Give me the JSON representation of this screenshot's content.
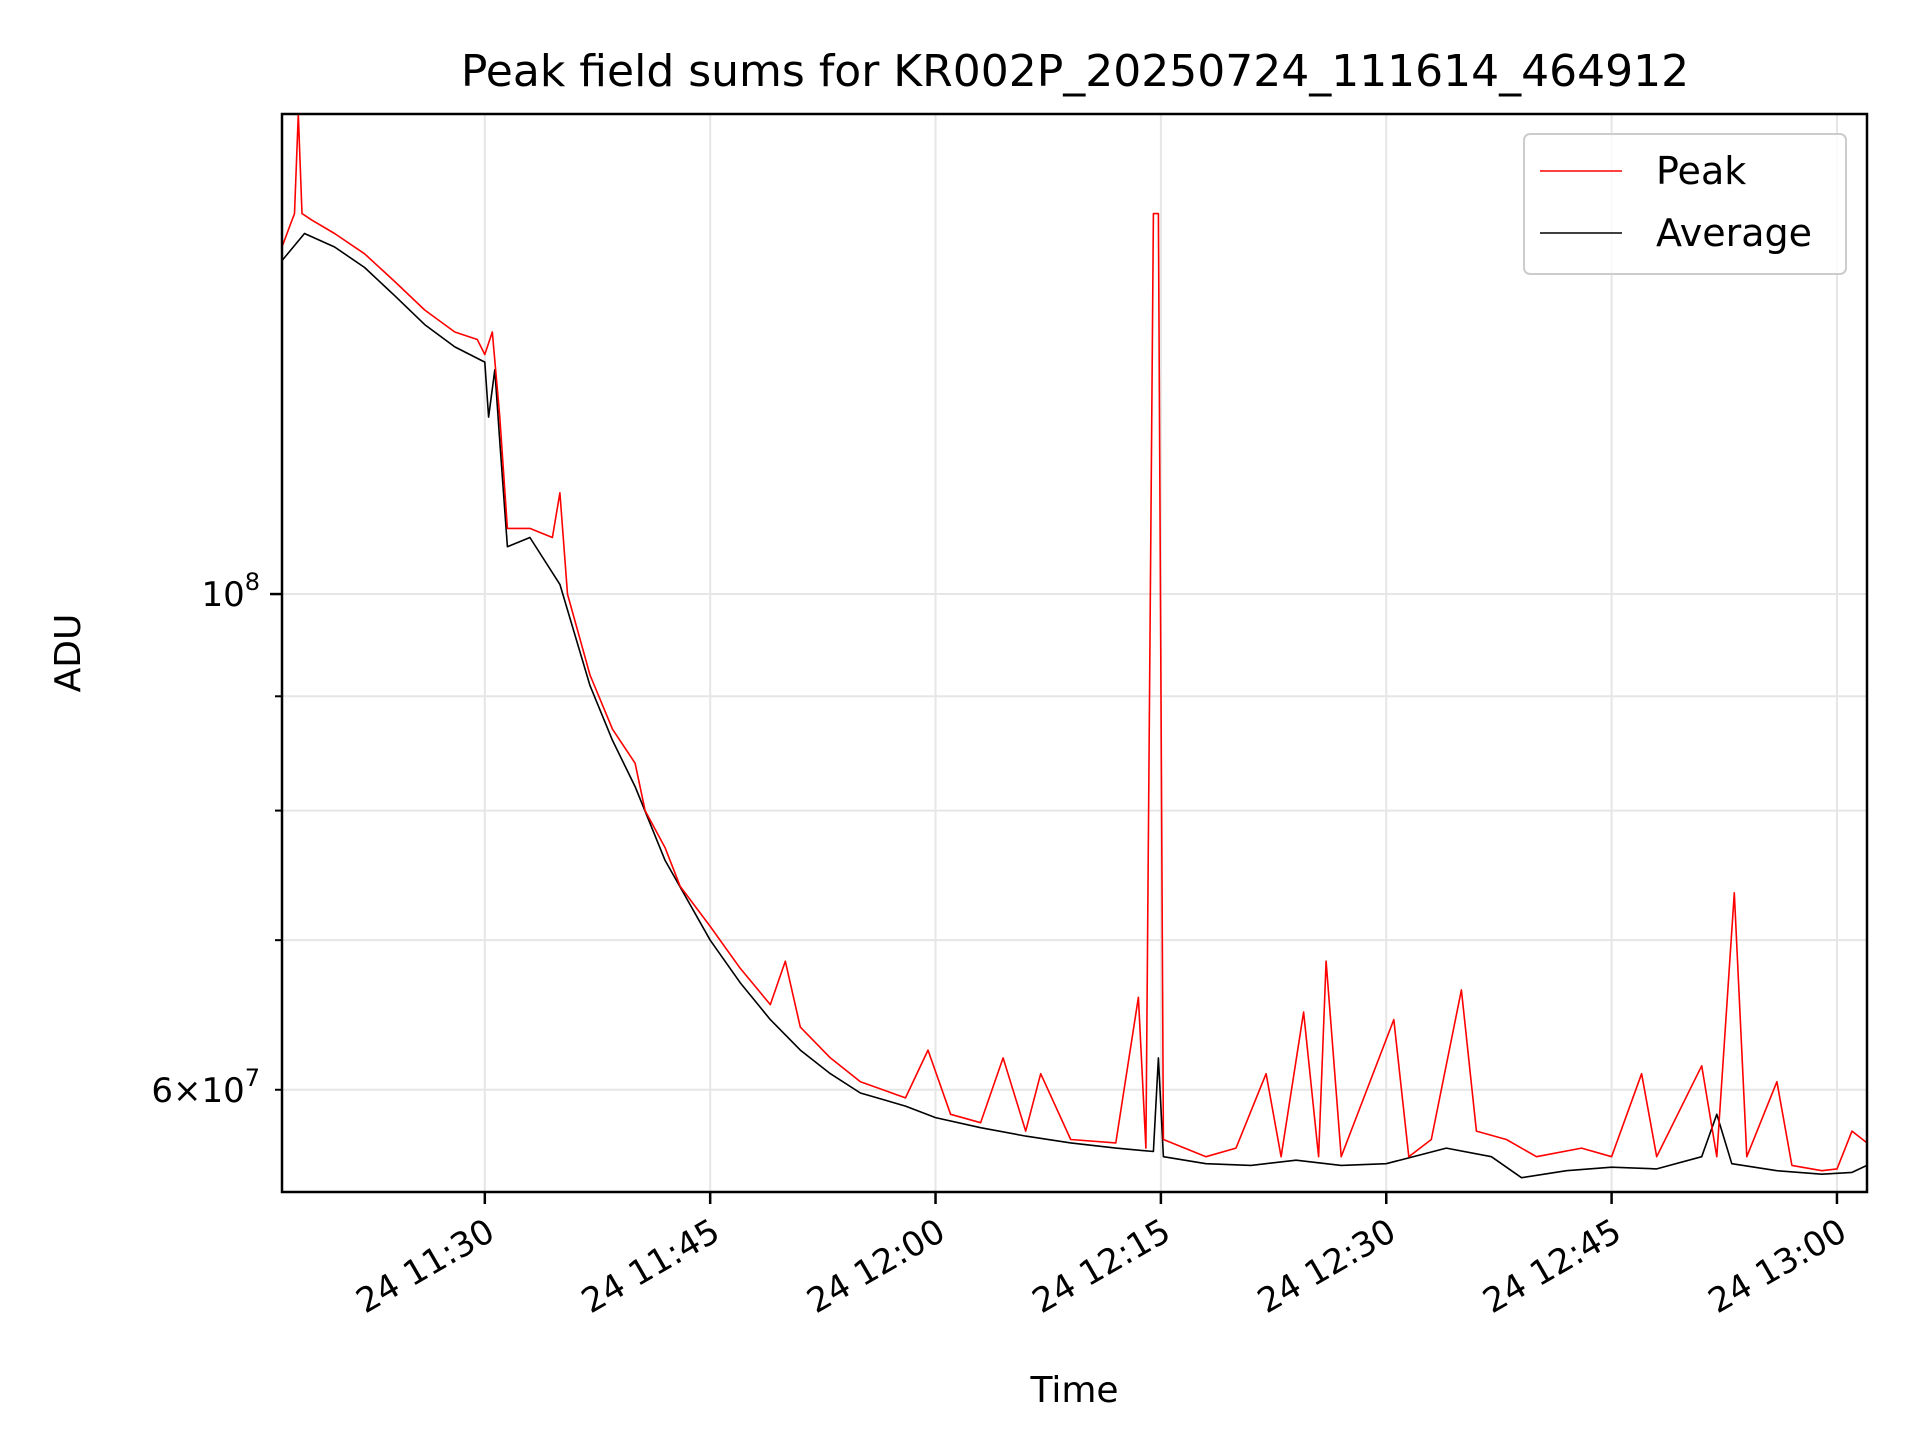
{
  "chart_data": {
    "type": "line",
    "title": "Peak field sums for KR002P_20250724_111614_464912",
    "xlabel": "Time",
    "ylabel": "ADU",
    "yscale": "log",
    "grid": true,
    "legend_position": "top-right",
    "xlim": [
      "2025-07-24 11:16:30",
      "2025-07-24 13:02:00"
    ],
    "ylim": [
      54000000,
      164000000
    ],
    "x_ticks": [
      {
        "t": "2025-07-24 11:30",
        "label": "24 11:30"
      },
      {
        "t": "2025-07-24 11:45",
        "label": "24 11:45"
      },
      {
        "t": "2025-07-24 12:00",
        "label": "24 12:00"
      },
      {
        "t": "2025-07-24 12:15",
        "label": "24 12:15"
      },
      {
        "t": "2025-07-24 12:30",
        "label": "24 12:30"
      },
      {
        "t": "2025-07-24 12:45",
        "label": "24 12:45"
      },
      {
        "t": "2025-07-24 13:00",
        "label": "24 13:00"
      }
    ],
    "y_ticks_major": [
      {
        "value": 100000000,
        "label_base": "10",
        "label_exp": "8"
      }
    ],
    "y_ticks_minor": [
      {
        "value": 60000000,
        "label_base": "6×10",
        "label_exp": "7"
      },
      {
        "value": 70000000
      },
      {
        "value": 80000000
      },
      {
        "value": 90000000
      }
    ],
    "series": [
      {
        "name": "Peak",
        "color": "#ff0000",
        "points": [
          [
            "2025-07-24 11:16:30",
            143000000
          ],
          [
            "2025-07-24 11:17:00",
            146000000
          ],
          [
            "2025-07-24 11:17:20",
            148000000
          ],
          [
            "2025-07-24 11:17:35",
            164000000
          ],
          [
            "2025-07-24 11:17:50",
            148000000
          ],
          [
            "2025-07-24 11:18:30",
            147000000
          ],
          [
            "2025-07-24 11:20:00",
            145000000
          ],
          [
            "2025-07-24 11:22:00",
            142000000
          ],
          [
            "2025-07-24 11:24:00",
            138000000
          ],
          [
            "2025-07-24 11:26:00",
            134000000
          ],
          [
            "2025-07-24 11:28:00",
            131000000
          ],
          [
            "2025-07-24 11:29:30",
            130000000
          ],
          [
            "2025-07-24 11:30:00",
            128000000
          ],
          [
            "2025-07-24 11:30:30",
            131000000
          ],
          [
            "2025-07-24 11:31:00",
            120000000
          ],
          [
            "2025-07-24 11:31:30",
            107000000
          ],
          [
            "2025-07-24 11:33:00",
            107000000
          ],
          [
            "2025-07-24 11:34:30",
            106000000
          ],
          [
            "2025-07-24 11:35:00",
            111000000
          ],
          [
            "2025-07-24 11:35:30",
            100000000
          ],
          [
            "2025-07-24 11:37:00",
            92000000
          ],
          [
            "2025-07-24 11:38:30",
            87000000
          ],
          [
            "2025-07-24 11:40:00",
            84000000
          ],
          [
            "2025-07-24 11:40:40",
            80000000
          ],
          [
            "2025-07-24 11:42:00",
            77000000
          ],
          [
            "2025-07-24 11:43:00",
            74000000
          ],
          [
            "2025-07-24 11:45:00",
            71000000
          ],
          [
            "2025-07-24 11:47:00",
            68000000
          ],
          [
            "2025-07-24 11:49:00",
            65500000
          ],
          [
            "2025-07-24 11:50:00",
            68500000
          ],
          [
            "2025-07-24 11:51:00",
            64000000
          ],
          [
            "2025-07-24 11:53:00",
            62000000
          ],
          [
            "2025-07-24 11:55:00",
            60500000
          ],
          [
            "2025-07-24 11:58:00",
            59500000
          ],
          [
            "2025-07-24 11:59:30",
            62500000
          ],
          [
            "2025-07-24 12:01:00",
            58500000
          ],
          [
            "2025-07-24 12:03:00",
            58000000
          ],
          [
            "2025-07-24 12:04:30",
            62000000
          ],
          [
            "2025-07-24 12:06:00",
            57500000
          ],
          [
            "2025-07-24 12:07:00",
            61000000
          ],
          [
            "2025-07-24 12:09:00",
            57000000
          ],
          [
            "2025-07-24 12:12:00",
            56800000
          ],
          [
            "2025-07-24 12:13:30",
            66000000
          ],
          [
            "2025-07-24 12:14:00",
            56500000
          ],
          [
            "2025-07-24 12:14:30",
            148000000
          ],
          [
            "2025-07-24 12:14:50",
            148000000
          ],
          [
            "2025-07-24 12:15:10",
            57000000
          ],
          [
            "2025-07-24 12:18:00",
            56000000
          ],
          [
            "2025-07-24 12:20:00",
            56500000
          ],
          [
            "2025-07-24 12:22:00",
            61000000
          ],
          [
            "2025-07-24 12:23:00",
            56000000
          ],
          [
            "2025-07-24 12:24:30",
            65000000
          ],
          [
            "2025-07-24 12:25:30",
            56000000
          ],
          [
            "2025-07-24 12:26:00",
            68500000
          ],
          [
            "2025-07-24 12:27:00",
            56000000
          ],
          [
            "2025-07-24 12:30:30",
            64500000
          ],
          [
            "2025-07-24 12:31:30",
            56000000
          ],
          [
            "2025-07-24 12:33:00",
            57000000
          ],
          [
            "2025-07-24 12:35:00",
            66500000
          ],
          [
            "2025-07-24 12:36:00",
            57500000
          ],
          [
            "2025-07-24 12:38:00",
            57000000
          ],
          [
            "2025-07-24 12:40:00",
            56000000
          ],
          [
            "2025-07-24 12:43:00",
            56500000
          ],
          [
            "2025-07-24 12:45:00",
            56000000
          ],
          [
            "2025-07-24 12:47:00",
            61000000
          ],
          [
            "2025-07-24 12:48:00",
            56000000
          ],
          [
            "2025-07-24 12:51:00",
            61500000
          ],
          [
            "2025-07-24 12:52:00",
            56000000
          ],
          [
            "2025-07-24 12:53:10",
            73500000
          ],
          [
            "2025-07-24 12:54:00",
            56000000
          ],
          [
            "2025-07-24 12:56:00",
            60500000
          ],
          [
            "2025-07-24 12:57:00",
            55500000
          ],
          [
            "2025-07-24 12:59:00",
            55200000
          ],
          [
            "2025-07-24 13:00:00",
            55300000
          ],
          [
            "2025-07-24 13:01:00",
            57500000
          ],
          [
            "2025-07-24 13:02:00",
            56800000
          ]
        ]
      },
      {
        "name": "Average",
        "color": "#000000",
        "points": [
          [
            "2025-07-24 11:16:30",
            141000000
          ],
          [
            "2025-07-24 11:18:00",
            145000000
          ],
          [
            "2025-07-24 11:20:00",
            143000000
          ],
          [
            "2025-07-24 11:22:00",
            140000000
          ],
          [
            "2025-07-24 11:24:00",
            136000000
          ],
          [
            "2025-07-24 11:26:00",
            132000000
          ],
          [
            "2025-07-24 11:28:00",
            129000000
          ],
          [
            "2025-07-24 11:30:00",
            127000000
          ],
          [
            "2025-07-24 11:30:15",
            120000000
          ],
          [
            "2025-07-24 11:30:40",
            126000000
          ],
          [
            "2025-07-24 11:31:00",
            117000000
          ],
          [
            "2025-07-24 11:31:30",
            105000000
          ],
          [
            "2025-07-24 11:33:00",
            106000000
          ],
          [
            "2025-07-24 11:35:00",
            101000000
          ],
          [
            "2025-07-24 11:37:00",
            91000000
          ],
          [
            "2025-07-24 11:38:30",
            86000000
          ],
          [
            "2025-07-24 11:40:00",
            82000000
          ],
          [
            "2025-07-24 11:42:00",
            76000000
          ],
          [
            "2025-07-24 11:45:00",
            70000000
          ],
          [
            "2025-07-24 11:47:00",
            67000000
          ],
          [
            "2025-07-24 11:49:00",
            64500000
          ],
          [
            "2025-07-24 11:51:00",
            62500000
          ],
          [
            "2025-07-24 11:53:00",
            61000000
          ],
          [
            "2025-07-24 11:55:00",
            59800000
          ],
          [
            "2025-07-24 11:58:00",
            59000000
          ],
          [
            "2025-07-24 12:00:00",
            58300000
          ],
          [
            "2025-07-24 12:03:00",
            57700000
          ],
          [
            "2025-07-24 12:06:00",
            57200000
          ],
          [
            "2025-07-24 12:09:00",
            56800000
          ],
          [
            "2025-07-24 12:12:00",
            56500000
          ],
          [
            "2025-07-24 12:14:30",
            56300000
          ],
          [
            "2025-07-24 12:14:50",
            62000000
          ],
          [
            "2025-07-24 12:15:10",
            56000000
          ],
          [
            "2025-07-24 12:18:00",
            55600000
          ],
          [
            "2025-07-24 12:21:00",
            55500000
          ],
          [
            "2025-07-24 12:24:00",
            55800000
          ],
          [
            "2025-07-24 12:27:00",
            55500000
          ],
          [
            "2025-07-24 12:30:00",
            55600000
          ],
          [
            "2025-07-24 12:34:00",
            56500000
          ],
          [
            "2025-07-24 12:37:00",
            56000000
          ],
          [
            "2025-07-24 12:39:00",
            54800000
          ],
          [
            "2025-07-24 12:42:00",
            55200000
          ],
          [
            "2025-07-24 12:45:00",
            55400000
          ],
          [
            "2025-07-24 12:48:00",
            55300000
          ],
          [
            "2025-07-24 12:51:00",
            56000000
          ],
          [
            "2025-07-24 12:52:00",
            58500000
          ],
          [
            "2025-07-24 12:53:00",
            55600000
          ],
          [
            "2025-07-24 12:56:00",
            55200000
          ],
          [
            "2025-07-24 12:59:00",
            55000000
          ],
          [
            "2025-07-24 13:01:00",
            55100000
          ],
          [
            "2025-07-24 13:02:00",
            55500000
          ]
        ]
      }
    ]
  }
}
